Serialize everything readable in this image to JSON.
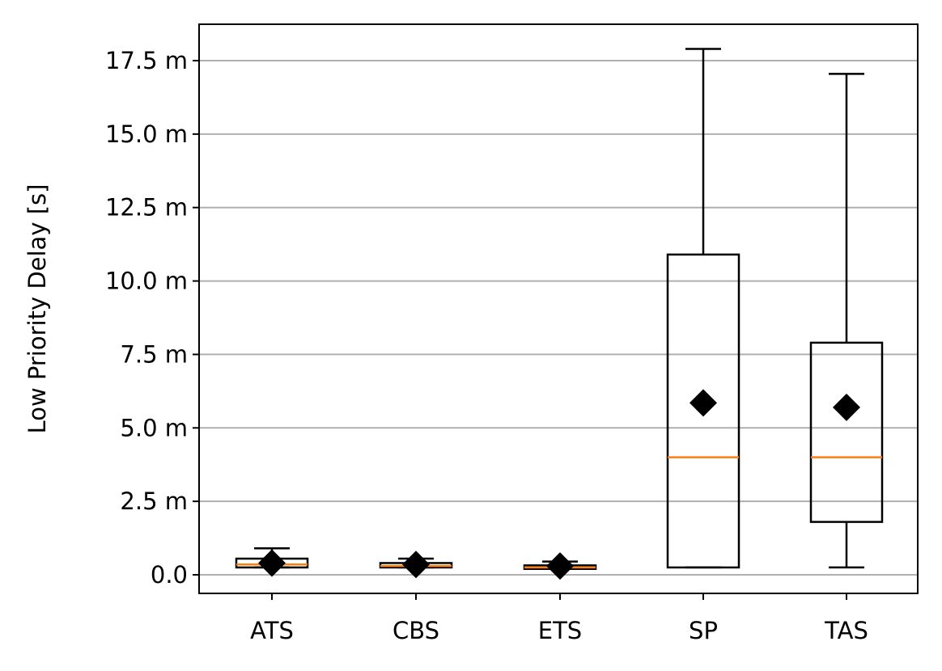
{
  "chart_data": {
    "type": "box",
    "ylabel": "Low Priority Delay [s]",
    "y_unit_suffix": " m",
    "ylim": [
      -0.6,
      18.8
    ],
    "yticks": [
      0.0,
      2.5,
      5.0,
      7.5,
      10.0,
      12.5,
      15.0,
      17.5
    ],
    "ytick_labels": [
      "0.0",
      "2.5 m",
      "5.0 m",
      "7.5 m",
      "10.0 m",
      "12.5 m",
      "15.0 m",
      "17.5 m"
    ],
    "grid": "horizontal",
    "categories": [
      "ATS",
      "CBS",
      "ETS",
      "SP",
      "TAS"
    ],
    "boxes": [
      {
        "category": "ATS",
        "whisker_low": 0.25,
        "q1": 0.25,
        "median": 0.35,
        "q3": 0.55,
        "whisker_high": 0.9,
        "mean": 0.4
      },
      {
        "category": "CBS",
        "whisker_low": 0.25,
        "q1": 0.25,
        "median": 0.3,
        "q3": 0.4,
        "whisker_high": 0.55,
        "mean": 0.35
      },
      {
        "category": "ETS",
        "whisker_low": 0.2,
        "q1": 0.2,
        "median": 0.25,
        "q3": 0.32,
        "whisker_high": 0.45,
        "mean": 0.3
      },
      {
        "category": "SP",
        "whisker_low": 0.25,
        "q1": 0.25,
        "median": 4.0,
        "q3": 10.9,
        "whisker_high": 17.9,
        "mean": 5.85
      },
      {
        "category": "TAS",
        "whisker_low": 0.25,
        "q1": 1.8,
        "median": 4.0,
        "q3": 7.9,
        "whisker_high": 17.05,
        "mean": 5.7
      }
    ],
    "colors": {
      "box": "#000000",
      "median": "#ff7f0e",
      "mean_marker": "#000000",
      "grid": "#b0b0b0"
    }
  }
}
